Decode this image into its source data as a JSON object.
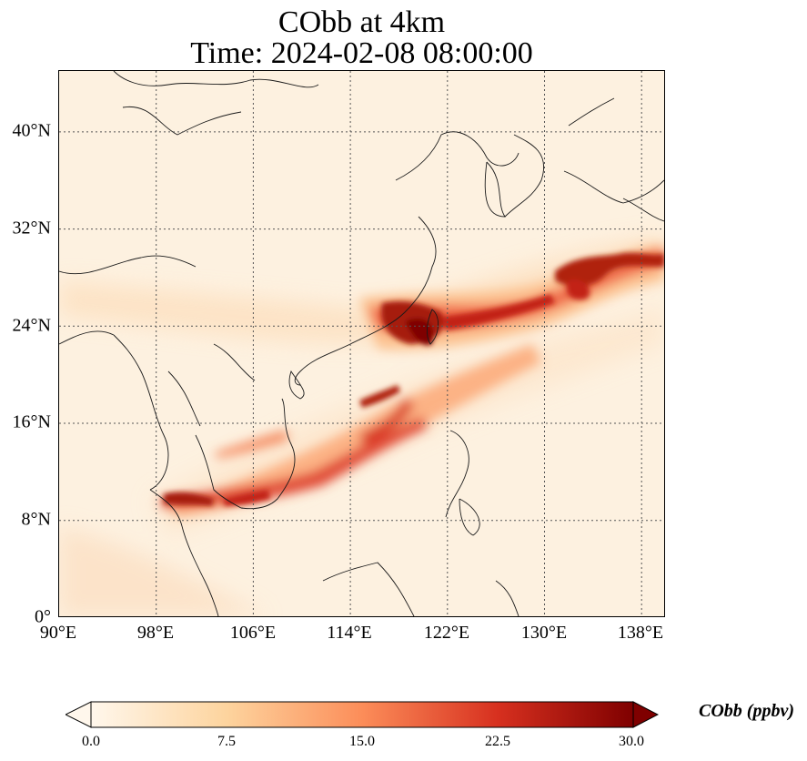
{
  "title_line1": "CObb at 4km",
  "title_line2": "Time: 2024-02-08 08:00:00",
  "y_ticks": [
    "0°",
    "8°N",
    "16°N",
    "24°N",
    "32°N",
    "40°N"
  ],
  "x_ticks": [
    "90°E",
    "98°E",
    "106°E",
    "114°E",
    "122°E",
    "130°E",
    "138°E"
  ],
  "colorbar": {
    "label": "CObb (ppbv)",
    "ticks": [
      "0.0",
      "7.5",
      "15.0",
      "22.5",
      "30.0"
    ],
    "colors": [
      "#fff7ec",
      "#fdd49e",
      "#fc8d59",
      "#d7301f",
      "#7f0000"
    ]
  },
  "map": {
    "lon_range": [
      90,
      140
    ],
    "lat_range": [
      0,
      45
    ],
    "gridlines": "dotted",
    "colormap": "OrRd"
  }
}
